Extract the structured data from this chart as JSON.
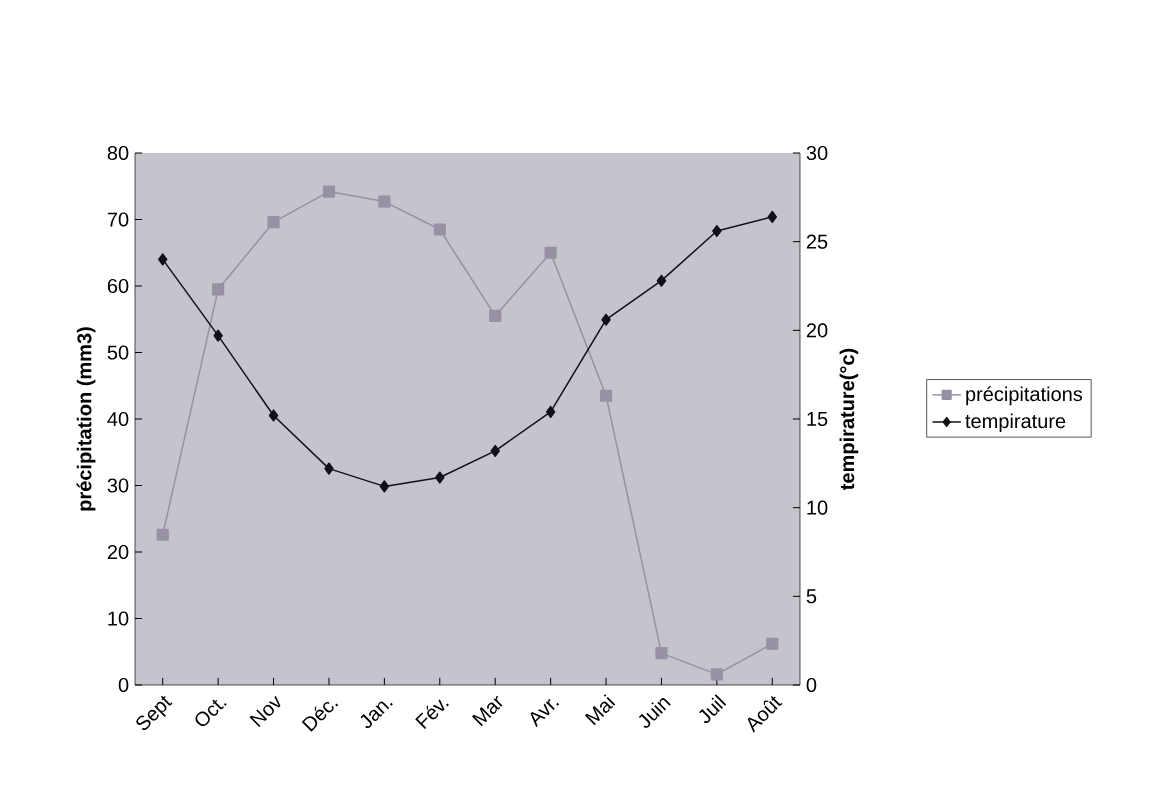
{
  "chart_data": {
    "type": "line",
    "categories": [
      "Sept",
      "Oct.",
      "Nov",
      "Déc.",
      "Jan.",
      "Fév.",
      "Mar",
      "Avr.",
      "Mai",
      "Juin",
      "Juil",
      "Août"
    ],
    "ylabel": "précipitation (mm3)",
    "y2label": "tempirature(°c)",
    "ylim": [
      0,
      80
    ],
    "yticks": [
      0,
      10,
      20,
      30,
      40,
      50,
      60,
      70,
      80
    ],
    "y2lim": [
      0,
      30
    ],
    "y2ticks": [
      0,
      5,
      10,
      15,
      20,
      25,
      30
    ],
    "legend": "right",
    "grid": false,
    "series": [
      {
        "name": "précipitations",
        "color": "#9890a4",
        "marker": "square",
        "values": [
          22.6,
          59.5,
          69.6,
          74.2,
          72.7,
          68.5,
          55.5,
          65,
          43.5,
          4.8,
          1.6,
          6.2
        ]
      },
      {
        "name": "tempirature",
        "color": "#101018",
        "marker": "diamond",
        "axis": "y2",
        "values": [
          24.0,
          19.7,
          15.2,
          12.2,
          11.2,
          11.7,
          13.2,
          15.4,
          20.6,
          22.8,
          25.6,
          26.4
        ]
      }
    ]
  }
}
